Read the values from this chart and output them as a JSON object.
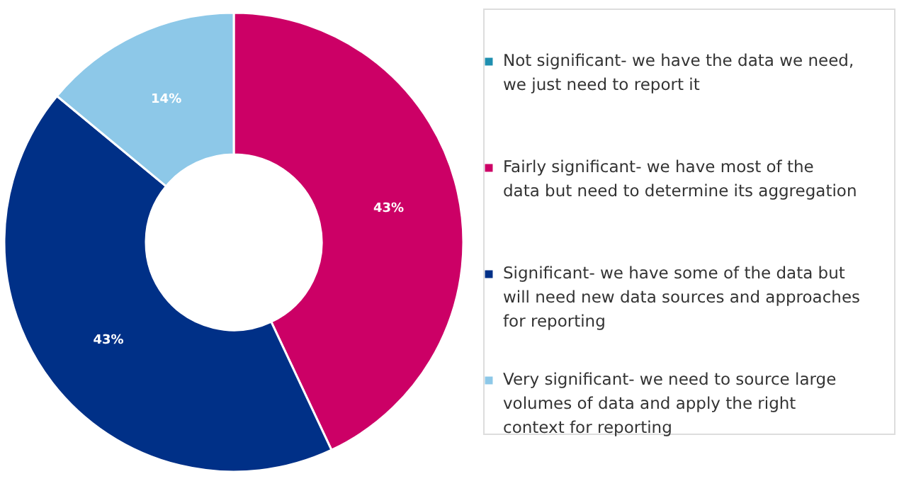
{
  "chart_data": {
    "type": "donut",
    "categories": [
      "Not significant- we have the data we need, we just need to report it",
      "Fairly significant- we have most of the data but need to determine its aggregation",
      "Significant- we have some of the data but will need new data sources and approaches for reporting",
      "Very significant- we need to source large volumes of data and apply the right context for reporting"
    ],
    "values": [
      0,
      43,
      43,
      14
    ],
    "colors": [
      "#1f8fb0",
      "#cc0066",
      "#003087",
      "#8dc8e8"
    ],
    "value_labels": [
      null,
      "43%",
      "43%",
      "14%"
    ],
    "legend": "right"
  }
}
